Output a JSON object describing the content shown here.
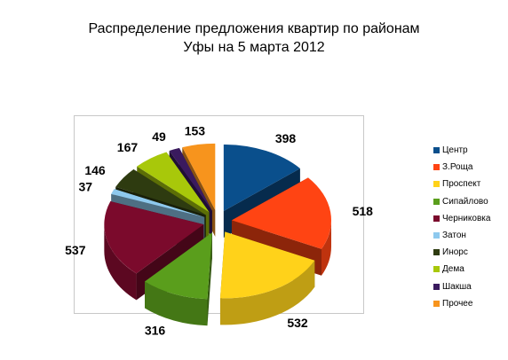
{
  "chart_data": {
    "type": "pie",
    "title_lines": [
      "Распределение предложения  квартир по районам",
      "Уфы на 5 марта 2012"
    ],
    "categories": [
      "Центр",
      "З.Роща",
      "Проспект",
      "Сипайлово",
      "Черниковка",
      "Затон",
      "Инорс",
      "Дема",
      "Шакша",
      "Прочее"
    ],
    "values": [
      398,
      518,
      532,
      316,
      537,
      37,
      146,
      167,
      49,
      153
    ],
    "colors": [
      "#0a4f8c",
      "#ff4413",
      "#ffd21a",
      "#5a9e1c",
      "#7b0a2c",
      "#8ec9ee",
      "#2e3b10",
      "#a8c80a",
      "#3a1a5e",
      "#f7941d"
    ],
    "legend_position": "right",
    "exploded": true,
    "style": "3d"
  }
}
